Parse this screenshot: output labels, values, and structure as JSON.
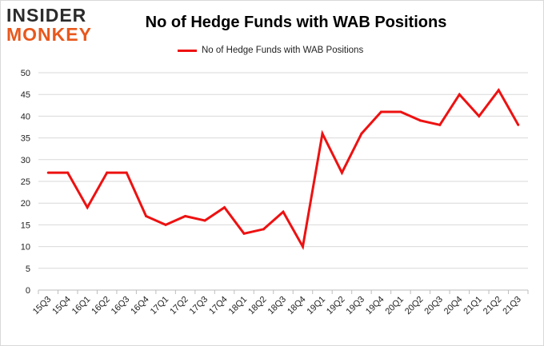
{
  "logo": {
    "line1": "INSIDER",
    "line2": "MONKEY"
  },
  "chart_data": {
    "type": "line",
    "title": "No of Hedge Funds with WAB Positions",
    "legend": {
      "label": "No of Hedge Funds with WAB Positions",
      "position": "top-center"
    },
    "colors": {
      "series": "#ee1111",
      "grid": "#d9d9d9"
    },
    "categories": [
      "15Q3",
      "15Q4",
      "16Q1",
      "16Q2",
      "16Q3",
      "16Q4",
      "17Q1",
      "17Q2",
      "17Q3",
      "17Q4",
      "18Q1",
      "18Q2",
      "18Q3",
      "18Q4",
      "19Q1",
      "19Q2",
      "19Q3",
      "19Q4",
      "20Q1",
      "20Q2",
      "20Q3",
      "20Q4",
      "21Q1",
      "21Q2",
      "21Q3"
    ],
    "series": [
      {
        "name": "No of Hedge Funds with WAB Positions",
        "values": [
          27,
          27,
          19,
          27,
          27,
          17,
          15,
          17,
          16,
          19,
          13,
          14,
          18,
          10,
          36,
          27,
          36,
          41,
          41,
          39,
          38,
          45,
          40,
          46,
          38
        ]
      }
    ],
    "yticks": [
      0,
      5,
      10,
      15,
      20,
      25,
      30,
      35,
      40,
      45,
      50
    ],
    "ylim": [
      0,
      50
    ],
    "xlabel": "",
    "ylabel": "",
    "grid": true
  }
}
